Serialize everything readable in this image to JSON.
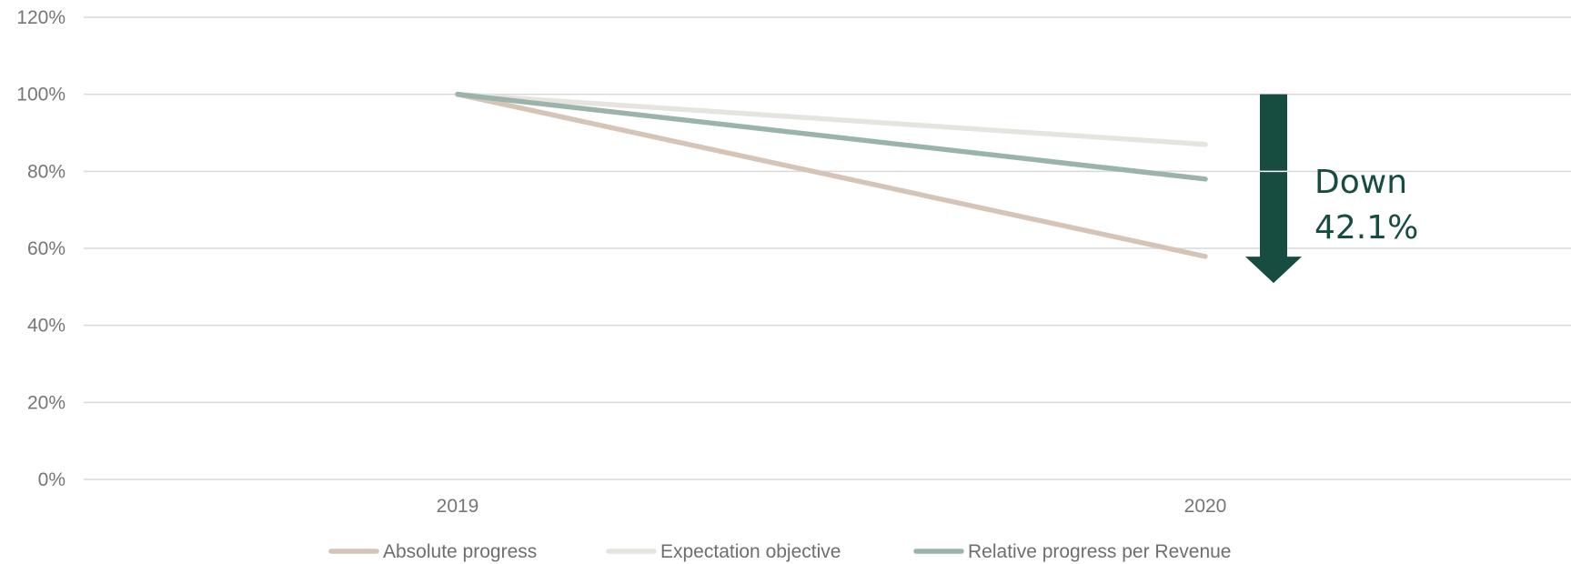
{
  "chart_data": {
    "type": "line",
    "categories": [
      "2019",
      "2020"
    ],
    "series": [
      {
        "name": "Absolute progress",
        "values": [
          100,
          57.9
        ],
        "color": "#d6c4b6"
      },
      {
        "name": "Expectation objective",
        "values": [
          100,
          87
        ],
        "color": "#e6e4df"
      },
      {
        "name": "Relative progress per Revenue",
        "values": [
          100,
          78
        ],
        "color": "#9bb4ab"
      }
    ],
    "yticks": [
      "0%",
      "20%",
      "40%",
      "60%",
      "80%",
      "100%",
      "120%"
    ],
    "ylim": [
      0,
      120
    ],
    "grid": true,
    "legend": "bottom",
    "annotation": {
      "line1": "Down",
      "line2": "42.1%",
      "arrow_from": 100,
      "arrow_to": 55,
      "color": "#174d40"
    }
  }
}
